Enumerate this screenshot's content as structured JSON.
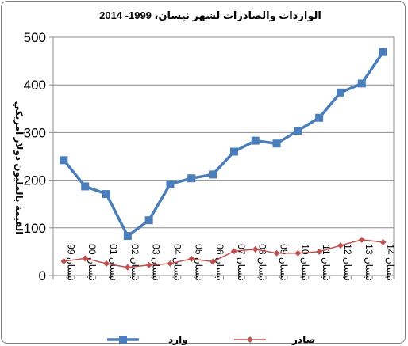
{
  "chart_data": {
    "type": "line",
    "title": "الواردات والصادرات لشهر  نيسان،  1999- 2014",
    "xlabel": "",
    "ylabel": "القيمة بالمليون دولار أمريكي",
    "categories": [
      "نيسان 99",
      "نيسان 00",
      "نيسان 01",
      "نيسان 02",
      "نيسان 03",
      "نيسان 04",
      "نيسان 05",
      "نيسان 06",
      "نيسان 07",
      "نيسان 08",
      "نيسان 09",
      "نيسان 10",
      "نيسان 11",
      "نيسان 12",
      "نيسان 13",
      "نيسان 14"
    ],
    "ylim": [
      0,
      500
    ],
    "yticks": [
      0,
      100,
      200,
      300,
      400,
      500
    ],
    "grid": true,
    "legend_position": "bottom",
    "series": [
      {
        "name": "وارد",
        "color": "#4a7ebb",
        "marker": "square",
        "values": [
          242,
          187,
          171,
          83,
          116,
          192,
          204,
          212,
          260,
          283,
          277,
          304,
          331,
          384,
          403,
          469
        ]
      },
      {
        "name": "صادر",
        "color": "#c0504d",
        "marker": "diamond",
        "values": [
          30,
          36,
          25,
          17,
          22,
          25,
          35,
          29,
          51,
          55,
          47,
          47,
          50,
          63,
          75,
          70
        ]
      }
    ]
  }
}
